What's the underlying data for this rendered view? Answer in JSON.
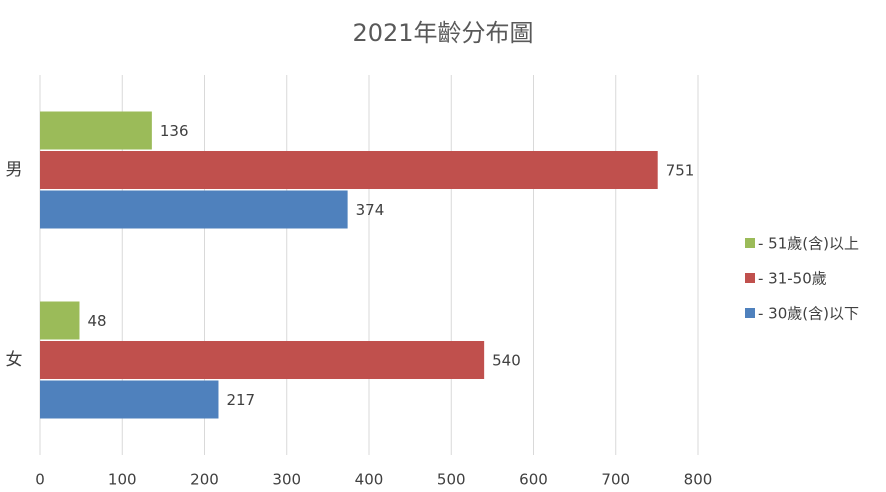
{
  "chart_data": {
    "type": "bar",
    "title": "2021年齡分布圖",
    "categories": [
      "男",
      "女"
    ],
    "series": [
      {
        "name": "- 51歲(含)以上",
        "color": "#9bbb59",
        "values": [
          136,
          48
        ]
      },
      {
        "name": "- 31-50歲",
        "color": "#c0504d",
        "values": [
          751,
          540
        ]
      },
      {
        "name": "- 30歲(含)以下",
        "color": "#4f81bd",
        "values": [
          374,
          217
        ]
      }
    ],
    "xlim": [
      0,
      800
    ],
    "xticks": [
      0,
      100,
      200,
      300,
      400,
      500,
      600,
      700,
      800
    ],
    "grid": true,
    "legend": "right"
  }
}
